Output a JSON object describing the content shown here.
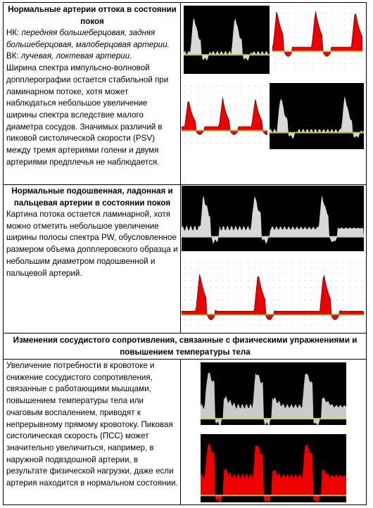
{
  "rows": [
    {
      "title": "Нормальные артерии оттока в состоянии покоя",
      "lines": [
        {
          "label": "НК:",
          "text": "передняя большеберцовая, задняя большеберцовая, малоберцовая артерии."
        },
        {
          "label": "ВК:",
          "text": "лучевая, локтевая артерии."
        }
      ],
      "paragraph": "Ширина спектра импульсно-волновой допплерографии остается стабильной при ламинарном потоке, хотя может наблюдаться небольшое увеличение ширины спектра вследствие малого диаметра сосудов. Значимых различий в пиковой систолической скорости (PSV) между тремя артериями голени и двумя артериями предплечья не наблюдается."
    },
    {
      "title": "Нормальные подошвенная, ладонная и пальцевая артерии в состоянии покоя",
      "paragraph": "Картина потока остается ламинарной, хотя можно отметить небольшое увеличение ширины полосы спектра PW, обусловленное размером объема допплеровского образца и небольшим диаметром подошвенной и пальцевой артерий."
    },
    {
      "title": "Изменения сосудистого сопротивления, связанные с физическими упражнениями и повышением температуры тела",
      "paragraph": "Увеличение потребности в кровотоке и снижение сосудистого сопротивления, связанные с работающими мышцами, повышением температуры тела или очаговым воспалением, приводят к непрерывному прямому кровотоку. Пиковая систолическая скорость (ПСС) может значительно увеличиться, например, в наружной подвздошной артерии, в результате физической нагрузки, даже если артерия находится в нормальном состоянии."
    }
  ]
}
